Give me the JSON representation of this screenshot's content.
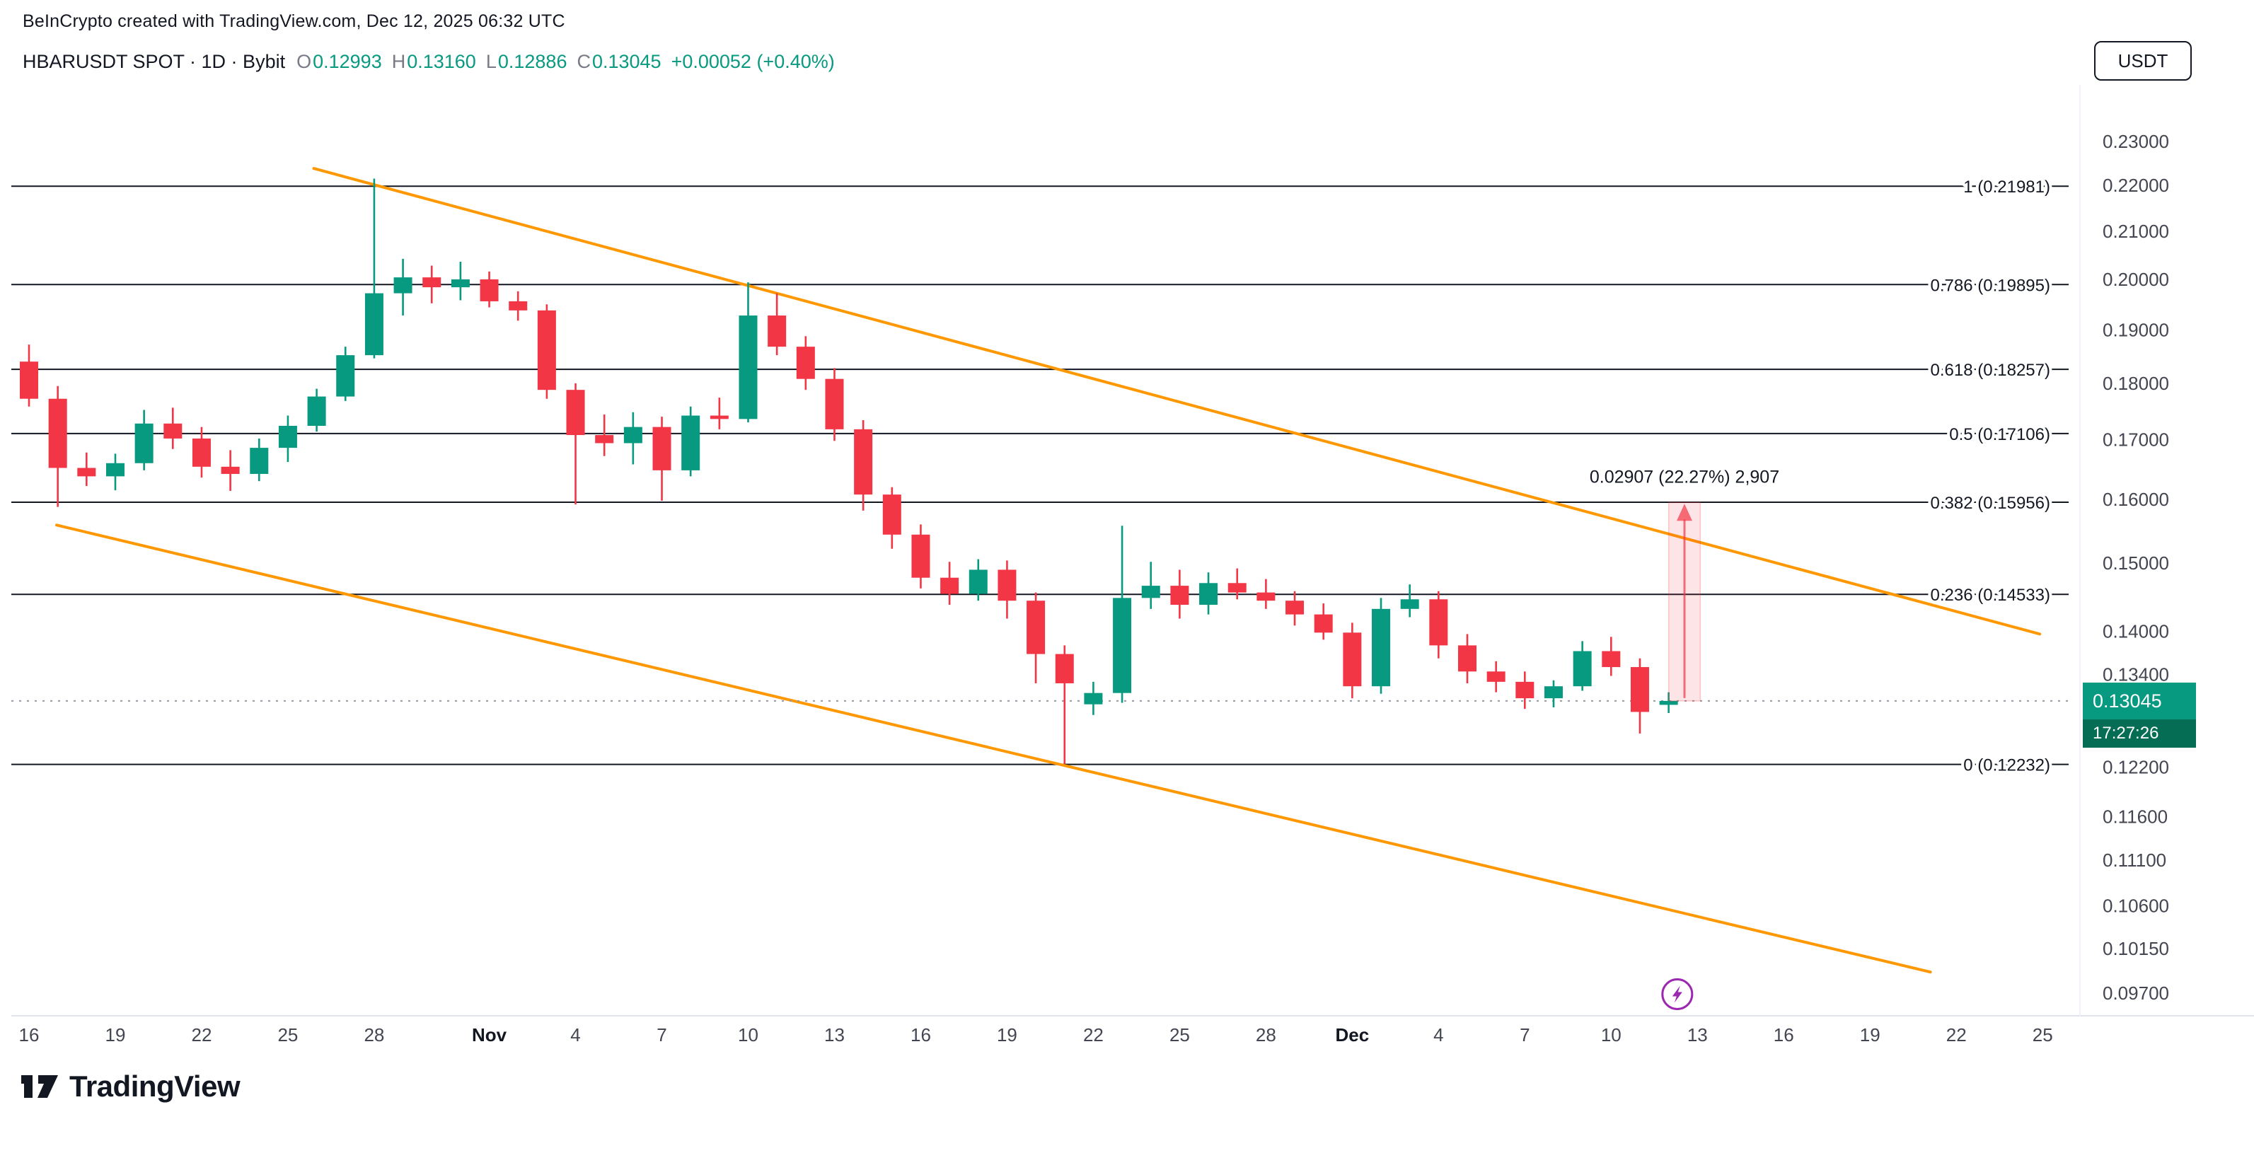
{
  "header": {
    "attribution": "BeInCrypto created with TradingView.com, Dec 12, 2025 06:32 UTC",
    "symbol_line": "HBARUSDT SPOT · 1D · Bybit",
    "ohlc": {
      "o_label": "O",
      "o": "0.12993",
      "h_label": "H",
      "h": "0.13160",
      "l_label": "L",
      "l": "0.12886",
      "c_label": "C",
      "c": "0.13045",
      "change": "+0.00052 (+0.40%)"
    },
    "currency_button": "USDT"
  },
  "footer": {
    "logo_text": "TradingView"
  },
  "colors": {
    "up": "#089981",
    "down": "#f23645",
    "trendline": "#ff9800",
    "fib_line": "#131722",
    "last_price_line": "#9598a1",
    "badge_bg": "#089981",
    "countdown_bg": "#056d54",
    "marker": "#9c27b0",
    "axis_text": "#434651",
    "measurement": "#f23645"
  },
  "chart_data": {
    "type": "candlestick",
    "title": "HBARUSDT SPOT · 1D · Bybit",
    "scale": "logarithmic",
    "price_range_visible": [
      0.097,
      0.23
    ],
    "current_price": 0.13045,
    "current_price_label": "0.13045",
    "countdown": "17:27:26",
    "fib_levels": [
      {
        "level": "1",
        "price": 0.21981
      },
      {
        "level": "0.786",
        "price": 0.19895
      },
      {
        "level": "0.618",
        "price": 0.18257
      },
      {
        "level": "0.5",
        "price": 0.17106
      },
      {
        "level": "0.382",
        "price": 0.15956
      },
      {
        "level": "0.236",
        "price": 0.14533
      },
      {
        "level": "0",
        "price": 0.12232
      }
    ],
    "trendlines": [
      {
        "name": "channel-upper",
        "d1": 9.9,
        "p1": 0.2238,
        "d2": 69.9,
        "p2": 0.1396
      },
      {
        "name": "channel-lower",
        "d1": 0.96,
        "p1": 0.1559,
        "d2": 66.1,
        "p2": 0.0991
      }
    ],
    "measurement": {
      "text": "0.02907 (22.27%) 2,907",
      "from_price": 0.13045,
      "to_price": 0.15952,
      "d_from": 57.0,
      "d_to": 58.1
    },
    "marker": {
      "shape": "lightning",
      "day": 57.3,
      "price": 0.0969
    },
    "price_axis_labels": [
      0.23,
      0.22,
      0.21,
      0.2,
      0.19,
      0.18,
      0.17,
      0.16,
      0.15,
      0.14,
      0.134,
      0.122,
      0.116,
      0.111,
      0.106,
      0.1015,
      0.097
    ],
    "time_axis_labels": [
      {
        "t": "16",
        "d": 0
      },
      {
        "t": "19",
        "d": 3
      },
      {
        "t": "22",
        "d": 6
      },
      {
        "t": "25",
        "d": 9
      },
      {
        "t": "28",
        "d": 12
      },
      {
        "t": "Nov",
        "d": 16,
        "bold": true
      },
      {
        "t": "4",
        "d": 19
      },
      {
        "t": "7",
        "d": 22
      },
      {
        "t": "10",
        "d": 25
      },
      {
        "t": "13",
        "d": 28
      },
      {
        "t": "16",
        "d": 31
      },
      {
        "t": "19",
        "d": 34
      },
      {
        "t": "22",
        "d": 37
      },
      {
        "t": "25",
        "d": 40
      },
      {
        "t": "28",
        "d": 43
      },
      {
        "t": "Dec",
        "d": 46,
        "bold": true
      },
      {
        "t": "4",
        "d": 49
      },
      {
        "t": "7",
        "d": 52
      },
      {
        "t": "10",
        "d": 55
      },
      {
        "t": "13",
        "d": 58
      },
      {
        "t": "16",
        "d": 61
      },
      {
        "t": "19",
        "d": 64
      },
      {
        "t": "22",
        "d": 67
      },
      {
        "t": "25",
        "d": 70
      }
    ],
    "candles": [
      {
        "t": "Oct 16",
        "o": 0.184,
        "h": 0.1872,
        "l": 0.1758,
        "c": 0.1772
      },
      {
        "t": "Oct 17",
        "o": 0.1772,
        "h": 0.1795,
        "l": 0.1588,
        "c": 0.1652
      },
      {
        "t": "Oct 18",
        "o": 0.1652,
        "h": 0.1678,
        "l": 0.1622,
        "c": 0.1638
      },
      {
        "t": "Oct 19",
        "o": 0.1638,
        "h": 0.1676,
        "l": 0.1615,
        "c": 0.166
      },
      {
        "t": "Oct 20",
        "o": 0.166,
        "h": 0.1752,
        "l": 0.1648,
        "c": 0.1728
      },
      {
        "t": "Oct 21",
        "o": 0.1728,
        "h": 0.1756,
        "l": 0.1684,
        "c": 0.1702
      },
      {
        "t": "Oct 22",
        "o": 0.1702,
        "h": 0.1722,
        "l": 0.1636,
        "c": 0.1654
      },
      {
        "t": "Oct 23",
        "o": 0.1654,
        "h": 0.1682,
        "l": 0.1614,
        "c": 0.1642
      },
      {
        "t": "Oct 24",
        "o": 0.1642,
        "h": 0.1702,
        "l": 0.163,
        "c": 0.1686
      },
      {
        "t": "Oct 25",
        "o": 0.1686,
        "h": 0.1742,
        "l": 0.1662,
        "c": 0.1724
      },
      {
        "t": "Oct 26",
        "o": 0.1724,
        "h": 0.179,
        "l": 0.1714,
        "c": 0.1776
      },
      {
        "t": "Oct 27",
        "o": 0.1776,
        "h": 0.1868,
        "l": 0.1768,
        "c": 0.1852
      },
      {
        "t": "Oct 28",
        "o": 0.1852,
        "h": 0.2215,
        "l": 0.1846,
        "c": 0.1972
      },
      {
        "t": "Oct 29",
        "o": 0.1972,
        "h": 0.2042,
        "l": 0.1928,
        "c": 0.2004
      },
      {
        "t": "Oct 30",
        "o": 0.2004,
        "h": 0.2028,
        "l": 0.1952,
        "c": 0.1984
      },
      {
        "t": "Oct 31",
        "o": 0.1984,
        "h": 0.2036,
        "l": 0.1958,
        "c": 0.2
      },
      {
        "t": "Nov 1",
        "o": 0.2,
        "h": 0.2016,
        "l": 0.1944,
        "c": 0.1956
      },
      {
        "t": "Nov 2",
        "o": 0.1956,
        "h": 0.1976,
        "l": 0.1918,
        "c": 0.1938
      },
      {
        "t": "Nov 3",
        "o": 0.1938,
        "h": 0.195,
        "l": 0.1772,
        "c": 0.1788
      },
      {
        "t": "Nov 4",
        "o": 0.1788,
        "h": 0.18,
        "l": 0.1592,
        "c": 0.1708
      },
      {
        "t": "Nov 5",
        "o": 0.1708,
        "h": 0.1744,
        "l": 0.1672,
        "c": 0.1694
      },
      {
        "t": "Nov 6",
        "o": 0.1694,
        "h": 0.1748,
        "l": 0.1658,
        "c": 0.1722
      },
      {
        "t": "Nov 7",
        "o": 0.1722,
        "h": 0.174,
        "l": 0.1598,
        "c": 0.1648
      },
      {
        "t": "Nov 8",
        "o": 0.1648,
        "h": 0.1758,
        "l": 0.1638,
        "c": 0.1742
      },
      {
        "t": "Nov 9",
        "o": 0.1742,
        "h": 0.1774,
        "l": 0.1718,
        "c": 0.1736
      },
      {
        "t": "Nov 10",
        "o": 0.1736,
        "h": 0.1994,
        "l": 0.173,
        "c": 0.1928
      },
      {
        "t": "Nov 11",
        "o": 0.1928,
        "h": 0.1972,
        "l": 0.1852,
        "c": 0.1868
      },
      {
        "t": "Nov 12",
        "o": 0.1868,
        "h": 0.1888,
        "l": 0.1788,
        "c": 0.1808
      },
      {
        "t": "Nov 13",
        "o": 0.1808,
        "h": 0.1828,
        "l": 0.1698,
        "c": 0.1718
      },
      {
        "t": "Nov 14",
        "o": 0.1718,
        "h": 0.1734,
        "l": 0.1582,
        "c": 0.1608
      },
      {
        "t": "Nov 15",
        "o": 0.1608,
        "h": 0.162,
        "l": 0.1522,
        "c": 0.1544
      },
      {
        "t": "Nov 16",
        "o": 0.1544,
        "h": 0.156,
        "l": 0.1462,
        "c": 0.1478
      },
      {
        "t": "Nov 17",
        "o": 0.1478,
        "h": 0.1502,
        "l": 0.1438,
        "c": 0.1454
      },
      {
        "t": "Nov 18",
        "o": 0.1454,
        "h": 0.1506,
        "l": 0.1444,
        "c": 0.149
      },
      {
        "t": "Nov 19",
        "o": 0.149,
        "h": 0.1504,
        "l": 0.1418,
        "c": 0.1444
      },
      {
        "t": "Nov 20",
        "o": 0.1444,
        "h": 0.1456,
        "l": 0.1328,
        "c": 0.1368
      },
      {
        "t": "Nov 21",
        "o": 0.1368,
        "h": 0.138,
        "l": 0.1224,
        "c": 0.1328
      },
      {
        "t": "Nov 22",
        "o": 0.13,
        "h": 0.133,
        "l": 0.1286,
        "c": 0.1315
      },
      {
        "t": "Nov 23",
        "o": 0.1315,
        "h": 0.1558,
        "l": 0.1302,
        "c": 0.1448
      },
      {
        "t": "Nov 24",
        "o": 0.1448,
        "h": 0.1502,
        "l": 0.1432,
        "c": 0.1466
      },
      {
        "t": "Nov 25",
        "o": 0.1466,
        "h": 0.149,
        "l": 0.1418,
        "c": 0.1438
      },
      {
        "t": "Nov 26",
        "o": 0.1438,
        "h": 0.1486,
        "l": 0.1424,
        "c": 0.147
      },
      {
        "t": "Nov 27",
        "o": 0.147,
        "h": 0.1492,
        "l": 0.1446,
        "c": 0.1456
      },
      {
        "t": "Nov 28",
        "o": 0.1456,
        "h": 0.1476,
        "l": 0.1432,
        "c": 0.1444
      },
      {
        "t": "Nov 29",
        "o": 0.1444,
        "h": 0.1458,
        "l": 0.1408,
        "c": 0.1424
      },
      {
        "t": "Nov 30",
        "o": 0.1424,
        "h": 0.144,
        "l": 0.1388,
        "c": 0.1398
      },
      {
        "t": "Dec 1",
        "o": 0.1398,
        "h": 0.1412,
        "l": 0.1308,
        "c": 0.1324
      },
      {
        "t": "Dec 2",
        "o": 0.1324,
        "h": 0.1448,
        "l": 0.1314,
        "c": 0.1432
      },
      {
        "t": "Dec 3",
        "o": 0.1432,
        "h": 0.1468,
        "l": 0.142,
        "c": 0.1446
      },
      {
        "t": "Dec 4",
        "o": 0.1446,
        "h": 0.1458,
        "l": 0.1362,
        "c": 0.138
      },
      {
        "t": "Dec 5",
        "o": 0.138,
        "h": 0.1396,
        "l": 0.1328,
        "c": 0.1344
      },
      {
        "t": "Dec 6",
        "o": 0.1344,
        "h": 0.1358,
        "l": 0.1316,
        "c": 0.133
      },
      {
        "t": "Dec 7",
        "o": 0.133,
        "h": 0.1344,
        "l": 0.1294,
        "c": 0.1308
      },
      {
        "t": "Dec 8",
        "o": 0.1308,
        "h": 0.1332,
        "l": 0.1296,
        "c": 0.1324
      },
      {
        "t": "Dec 9",
        "o": 0.1324,
        "h": 0.1386,
        "l": 0.1318,
        "c": 0.1372
      },
      {
        "t": "Dec 10",
        "o": 0.1372,
        "h": 0.1392,
        "l": 0.1338,
        "c": 0.135
      },
      {
        "t": "Dec 11",
        "o": 0.135,
        "h": 0.1362,
        "l": 0.1262,
        "c": 0.129
      },
      {
        "t": "Dec 12",
        "o": 0.12993,
        "h": 0.1316,
        "l": 0.12886,
        "c": 0.13045
      }
    ]
  }
}
